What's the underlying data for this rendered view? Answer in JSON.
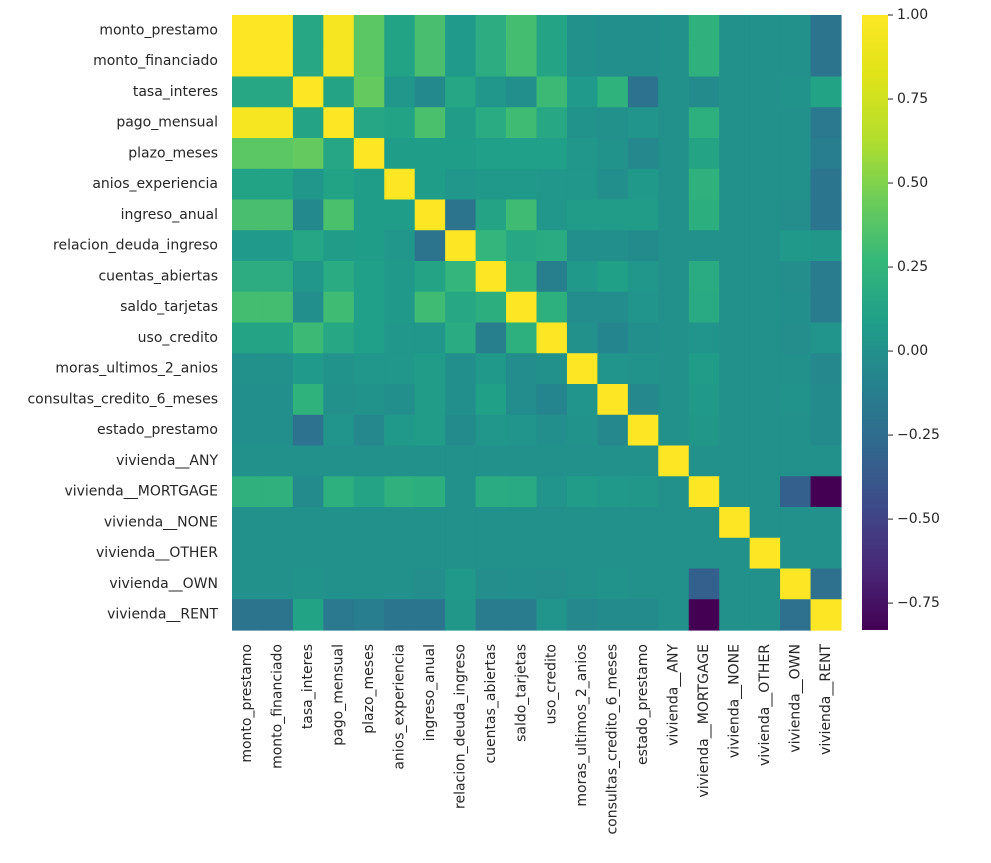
{
  "chart_data": {
    "type": "heatmap",
    "title": "",
    "colormap": "viridis",
    "vmin": -0.83,
    "vmax": 1.0,
    "rows": [
      "monto_prestamo",
      "monto_financiado",
      "tasa_interes",
      "pago_mensual",
      "plazo_meses",
      "anios_experiencia",
      "ingreso_anual",
      "relacion_deuda_ingreso",
      "cuentas_abiertas",
      "saldo_tarjetas",
      "uso_credito",
      "moras_ultimos_2_anios",
      "consultas_credito_6_meses",
      "estado_prestamo",
      "vivienda__ANY",
      "vivienda__MORTGAGE",
      "vivienda__NONE",
      "vivienda__OTHER",
      "vivienda__OWN",
      "vivienda__RENT"
    ],
    "columns": [
      "monto_prestamo",
      "monto_financiado",
      "tasa_interes",
      "pago_mensual",
      "plazo_meses",
      "anios_experiencia",
      "ingreso_anual",
      "relacion_deuda_ingreso",
      "cuentas_abiertas",
      "saldo_tarjetas",
      "uso_credito",
      "moras_ultimos_2_anios",
      "consultas_credito_6_meses",
      "estado_prestamo",
      "vivienda__ANY",
      "vivienda__MORTGAGE",
      "vivienda__NONE",
      "vivienda__OTHER",
      "vivienda__OWN",
      "vivienda__RENT"
    ],
    "values": [
      [
        1.0,
        1.0,
        0.15,
        0.95,
        0.39,
        0.12,
        0.33,
        0.06,
        0.19,
        0.32,
        0.13,
        0.0,
        -0.01,
        -0.01,
        0.0,
        0.22,
        0.0,
        0.0,
        0.0,
        -0.2
      ],
      [
        1.0,
        1.0,
        0.15,
        0.95,
        0.39,
        0.12,
        0.33,
        0.06,
        0.19,
        0.32,
        0.13,
        0.0,
        -0.01,
        -0.01,
        0.0,
        0.22,
        0.0,
        0.0,
        0.0,
        -0.2
      ],
      [
        0.15,
        0.15,
        1.0,
        0.13,
        0.42,
        0.03,
        -0.05,
        0.14,
        0.03,
        -0.01,
        0.29,
        0.06,
        0.23,
        -0.21,
        0.0,
        -0.04,
        0.0,
        0.0,
        0.01,
        0.12
      ],
      [
        0.95,
        0.95,
        0.13,
        1.0,
        0.14,
        0.12,
        0.34,
        0.07,
        0.18,
        0.3,
        0.15,
        0.01,
        0.0,
        0.02,
        0.0,
        0.21,
        0.0,
        0.0,
        0.0,
        -0.16
      ],
      [
        0.39,
        0.39,
        0.42,
        0.14,
        1.0,
        0.08,
        0.08,
        0.08,
        0.09,
        0.09,
        0.09,
        0.03,
        0.01,
        -0.06,
        0.0,
        0.13,
        0.0,
        0.0,
        0.0,
        -0.13
      ],
      [
        0.12,
        0.12,
        0.03,
        0.12,
        0.08,
        1.0,
        0.08,
        0.03,
        0.05,
        0.05,
        0.03,
        0.03,
        -0.01,
        0.05,
        0.0,
        0.22,
        0.0,
        0.0,
        0.0,
        -0.19
      ],
      [
        0.33,
        0.33,
        -0.05,
        0.34,
        0.08,
        0.08,
        1.0,
        -0.2,
        0.13,
        0.3,
        0.03,
        0.07,
        0.07,
        0.07,
        0.0,
        0.2,
        0.0,
        0.0,
        -0.02,
        -0.18
      ],
      [
        0.06,
        0.06,
        0.14,
        0.07,
        0.08,
        0.03,
        -0.2,
        1.0,
        0.25,
        0.15,
        0.18,
        -0.01,
        -0.01,
        -0.04,
        0.0,
        0.0,
        0.0,
        0.0,
        0.05,
        0.04
      ],
      [
        0.19,
        0.19,
        0.03,
        0.18,
        0.09,
        0.05,
        0.13,
        0.25,
        1.0,
        0.2,
        -0.12,
        0.05,
        0.1,
        0.03,
        0.0,
        0.18,
        0.0,
        0.0,
        -0.02,
        -0.14
      ],
      [
        0.32,
        0.32,
        -0.01,
        0.3,
        0.09,
        0.05,
        0.3,
        0.15,
        0.2,
        1.0,
        0.21,
        -0.03,
        -0.03,
        0.02,
        0.0,
        0.17,
        0.0,
        0.0,
        -0.01,
        -0.14
      ],
      [
        0.13,
        0.13,
        0.29,
        0.15,
        0.09,
        0.03,
        0.03,
        0.18,
        -0.12,
        0.21,
        1.0,
        0.0,
        -0.08,
        -0.01,
        0.0,
        0.02,
        0.0,
        0.0,
        -0.02,
        0.02
      ],
      [
        0.0,
        0.0,
        0.06,
        0.01,
        0.03,
        0.03,
        0.07,
        -0.01,
        0.05,
        -0.03,
        0.0,
        1.0,
        0.02,
        0.01,
        0.0,
        0.07,
        0.0,
        0.0,
        0.0,
        -0.06
      ],
      [
        -0.01,
        -0.01,
        0.23,
        0.0,
        0.01,
        -0.01,
        0.07,
        -0.01,
        0.1,
        -0.03,
        -0.08,
        0.02,
        1.0,
        -0.06,
        0.0,
        0.05,
        0.0,
        0.0,
        0.01,
        -0.04
      ],
      [
        -0.01,
        -0.01,
        -0.21,
        0.02,
        -0.06,
        0.05,
        0.07,
        -0.04,
        0.03,
        0.02,
        -0.01,
        0.01,
        -0.06,
        1.0,
        0.0,
        0.04,
        0.0,
        0.0,
        0.0,
        -0.04
      ],
      [
        0.0,
        0.0,
        0.0,
        0.0,
        0.0,
        0.0,
        0.0,
        0.0,
        0.0,
        0.0,
        0.0,
        0.0,
        0.0,
        0.0,
        1.0,
        0.0,
        0.0,
        0.0,
        0.0,
        0.0
      ],
      [
        0.22,
        0.22,
        -0.04,
        0.21,
        0.13,
        0.22,
        0.2,
        0.0,
        0.18,
        0.17,
        0.02,
        0.07,
        0.05,
        0.04,
        0.0,
        1.0,
        0.0,
        0.0,
        -0.33,
        -0.83
      ],
      [
        0.0,
        0.0,
        0.0,
        0.0,
        0.0,
        0.0,
        0.0,
        0.0,
        0.0,
        0.0,
        0.0,
        0.0,
        0.0,
        0.0,
        0.0,
        0.0,
        1.0,
        0.0,
        0.0,
        0.0
      ],
      [
        0.0,
        0.0,
        0.0,
        0.0,
        0.0,
        0.0,
        0.0,
        0.0,
        0.0,
        0.0,
        0.0,
        0.0,
        0.0,
        0.0,
        0.0,
        0.0,
        0.0,
        1.0,
        0.0,
        0.0
      ],
      [
        0.0,
        0.0,
        0.01,
        0.0,
        0.0,
        0.0,
        -0.02,
        0.05,
        -0.02,
        -0.01,
        -0.02,
        0.0,
        0.01,
        0.0,
        0.0,
        -0.33,
        0.0,
        0.0,
        1.0,
        -0.22
      ],
      [
        -0.2,
        -0.2,
        0.12,
        -0.16,
        -0.13,
        -0.19,
        -0.18,
        0.04,
        -0.14,
        -0.14,
        0.02,
        -0.06,
        -0.04,
        -0.04,
        0.0,
        -0.83,
        0.0,
        0.0,
        -0.22,
        1.0
      ]
    ],
    "colorbar": {
      "ticks": [
        1.0,
        0.75,
        0.5,
        0.25,
        0.0,
        -0.25,
        -0.5,
        -0.75
      ],
      "tick_labels": [
        "1.00",
        "0.75",
        "0.50",
        "0.25",
        "0.00",
        "−0.25",
        "−0.50",
        "−0.75"
      ]
    }
  }
}
